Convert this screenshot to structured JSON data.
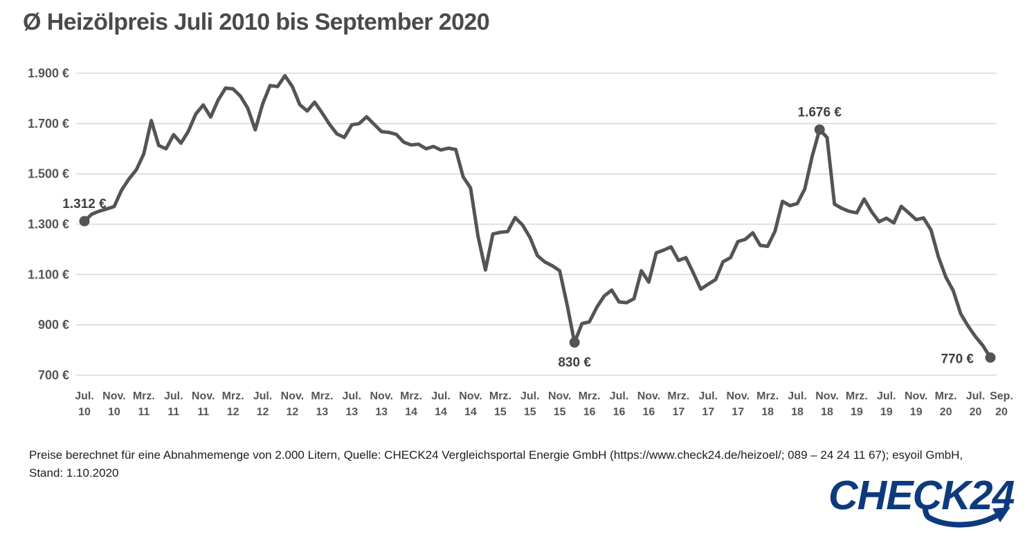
{
  "title": "Ø Heizölpreis Juli 2010 bis September 2020",
  "footer": {
    "line1": "Preise berechnet für eine Abnahmemenge von 2.000 Litern, Quelle: CHECK24 Vergleichsportal Energie GmbH (https://www.check24.de/heizoel/; 089 – 24 24 11 67); esyoil GmbH,",
    "line2": "Stand: 1.10.2020"
  },
  "logo": {
    "text": "CHECK24",
    "color": "#0d3a7c"
  },
  "chart_data": {
    "type": "line",
    "title": "Ø Heizölpreis Juli 2010 bis September 2020",
    "interval": "monthly",
    "start_month": "Jul. 2010",
    "end_month": "Sep. 2020",
    "ylim": [
      700,
      1900
    ],
    "grid": true,
    "colors": {
      "line": "#545454",
      "grid": "#d8d8d8",
      "axis_text": "#565656",
      "annotation": "#3f3f3f"
    },
    "y_ticks": [
      {
        "value": 1900,
        "label": "1.900 €"
      },
      {
        "value": 1700,
        "label": "1.700 €"
      },
      {
        "value": 1500,
        "label": "1.500 €"
      },
      {
        "value": 1300,
        "label": "1.300 €"
      },
      {
        "value": 1100,
        "label": "1.100 €"
      },
      {
        "value": 900,
        "label": "900 €"
      },
      {
        "value": 700,
        "label": "700 €"
      }
    ],
    "x_ticks": [
      {
        "index": 0,
        "label": "Jul. 10"
      },
      {
        "index": 4,
        "label": "Nov. 10"
      },
      {
        "index": 8,
        "label": "Mrz. 11"
      },
      {
        "index": 12,
        "label": "Jul. 11"
      },
      {
        "index": 16,
        "label": "Nov. 11"
      },
      {
        "index": 20,
        "label": "Mrz. 12"
      },
      {
        "index": 24,
        "label": "Jul. 12"
      },
      {
        "index": 28,
        "label": "Nov. 12"
      },
      {
        "index": 32,
        "label": "Mrz. 13"
      },
      {
        "index": 36,
        "label": "Jul. 13"
      },
      {
        "index": 40,
        "label": "Nov. 13"
      },
      {
        "index": 44,
        "label": "Mrz. 14"
      },
      {
        "index": 48,
        "label": "Jul. 14"
      },
      {
        "index": 52,
        "label": "Nov. 14"
      },
      {
        "index": 56,
        "label": "Mrz. 15"
      },
      {
        "index": 60,
        "label": "Jul. 15"
      },
      {
        "index": 64,
        "label": "Nov. 15"
      },
      {
        "index": 68,
        "label": "Mrz. 16"
      },
      {
        "index": 72,
        "label": "Jul. 16"
      },
      {
        "index": 76,
        "label": "Nov. 16"
      },
      {
        "index": 80,
        "label": "Mrz. 17"
      },
      {
        "index": 84,
        "label": "Jul. 17"
      },
      {
        "index": 88,
        "label": "Nov. 17"
      },
      {
        "index": 92,
        "label": "Mrz. 18"
      },
      {
        "index": 96,
        "label": "Jul. 18"
      },
      {
        "index": 100,
        "label": "Nov. 18"
      },
      {
        "index": 104,
        "label": "Mrz. 19"
      },
      {
        "index": 108,
        "label": "Jul. 19"
      },
      {
        "index": 112,
        "label": "Nov. 19"
      },
      {
        "index": 116,
        "label": "Mrz. 20"
      },
      {
        "index": 120,
        "label": "Jul. 20"
      },
      {
        "index": 122,
        "label": "Sep. 20"
      }
    ],
    "values": [
      1312,
      1340,
      1352,
      1361,
      1370,
      1435,
      1480,
      1517,
      1580,
      1712,
      1613,
      1600,
      1656,
      1622,
      1670,
      1738,
      1774,
      1726,
      1793,
      1841,
      1838,
      1809,
      1761,
      1675,
      1778,
      1851,
      1847,
      1890,
      1847,
      1775,
      1750,
      1785,
      1743,
      1697,
      1659,
      1645,
      1695,
      1700,
      1727,
      1697,
      1668,
      1665,
      1657,
      1626,
      1615,
      1618,
      1600,
      1609,
      1595,
      1602,
      1597,
      1488,
      1444,
      1252,
      1118,
      1261,
      1268,
      1271,
      1326,
      1297,
      1247,
      1175,
      1150,
      1135,
      1115,
      980,
      830,
      905,
      912,
      970,
      1015,
      1038,
      991,
      988,
      1004,
      1115,
      1070,
      1186,
      1197,
      1210,
      1156,
      1167,
      1106,
      1042,
      1062,
      1080,
      1151,
      1167,
      1231,
      1240,
      1266,
      1216,
      1212,
      1272,
      1391,
      1374,
      1382,
      1440,
      1570,
      1676,
      1645,
      1380,
      1363,
      1351,
      1345,
      1400,
      1350,
      1310,
      1324,
      1305,
      1371,
      1345,
      1318,
      1325,
      1277,
      1170,
      1090,
      1035,
      944,
      895,
      853,
      817,
      770
    ],
    "annotations": [
      {
        "index": 0,
        "label": "1.312 €",
        "placement": "above"
      },
      {
        "index": 66,
        "label": "830 €",
        "placement": "below"
      },
      {
        "index": 99,
        "label": "1.676 €",
        "placement": "above"
      },
      {
        "index": 122,
        "label": "770 €",
        "placement": "left"
      }
    ]
  }
}
